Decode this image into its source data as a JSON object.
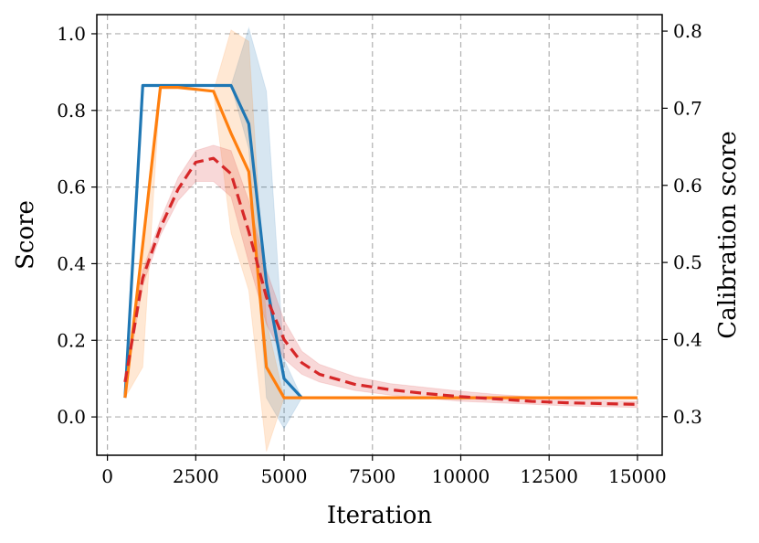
{
  "chart_data": {
    "type": "line",
    "xlabel": "Iteration",
    "ylabel": "Score",
    "y2label": "Calibration score",
    "xlim": [
      -300,
      15700
    ],
    "ylim": [
      -0.1,
      1.05
    ],
    "y2lim": [
      0.25,
      0.8214
    ],
    "grid": true,
    "x_ticks": [
      0,
      2500,
      5000,
      7500,
      10000,
      12500,
      15000
    ],
    "x_tick_labels": [
      "0",
      "2500",
      "5000",
      "7500",
      "10000",
      "12500",
      "15000"
    ],
    "y_ticks": [
      0.0,
      0.2,
      0.4,
      0.6,
      0.8,
      1.0
    ],
    "y_tick_labels": [
      "0.0",
      "0.2",
      "0.4",
      "0.6",
      "0.8",
      "1.0"
    ],
    "y2_ticks": [
      0.3,
      0.4,
      0.5,
      0.6,
      0.7,
      0.8
    ],
    "y2_tick_labels": [
      "0.3",
      "0.4",
      "0.5",
      "0.6",
      "0.7",
      "0.8"
    ],
    "series": [
      {
        "color": "#1f77b4",
        "axis": "left",
        "style": "solid",
        "x": [
          500,
          1000,
          1500,
          2000,
          2500,
          3000,
          3500,
          4000,
          4500,
          5000,
          5500
        ],
        "y": [
          0.05,
          0.865,
          0.865,
          0.865,
          0.865,
          0.865,
          0.865,
          0.765,
          0.35,
          0.1,
          0.05
        ],
        "lower": [
          0.05,
          0.865,
          0.865,
          0.865,
          0.865,
          0.865,
          0.865,
          0.7,
          0.05,
          -0.03,
          0.05
        ],
        "upper": [
          0.05,
          0.865,
          0.865,
          0.865,
          0.865,
          0.865,
          0.865,
          1.015,
          0.85,
          0.15,
          0.05
        ]
      },
      {
        "color": "#ff7f0e",
        "axis": "left",
        "style": "solid",
        "x": [
          500,
          1000,
          1500,
          2000,
          2500,
          3000,
          3500,
          4000,
          4500,
          5000,
          5500,
          6000,
          7000,
          8000,
          9000,
          10000,
          11000,
          12000,
          13000,
          14000,
          15000
        ],
        "y": [
          0.05,
          0.45,
          0.86,
          0.86,
          0.855,
          0.85,
          0.74,
          0.64,
          0.13,
          0.05,
          0.05,
          0.05,
          0.05,
          0.05,
          0.05,
          0.05,
          0.05,
          0.05,
          0.05,
          0.05,
          0.05
        ],
        "lower": [
          0.05,
          0.13,
          0.86,
          0.86,
          0.855,
          0.85,
          0.48,
          0.33,
          -0.09,
          0.05,
          0.05,
          0.05,
          0.05,
          0.05,
          0.05,
          0.05,
          0.05,
          0.05,
          0.05,
          0.05,
          0.05
        ],
        "upper": [
          0.05,
          0.45,
          0.86,
          0.86,
          0.855,
          0.85,
          1.01,
          0.98,
          0.25,
          0.05,
          0.05,
          0.05,
          0.05,
          0.05,
          0.05,
          0.05,
          0.05,
          0.05,
          0.05,
          0.05,
          0.05
        ]
      },
      {
        "color": "#d62728",
        "axis": "right",
        "style": "dashed",
        "x": [
          500,
          1000,
          1500,
          2000,
          2500,
          3000,
          3500,
          4000,
          4500,
          5000,
          5500,
          6000,
          7000,
          8000,
          9000,
          10000,
          11000,
          12000,
          13000,
          14000,
          15000
        ],
        "y": [
          0.345,
          0.48,
          0.545,
          0.595,
          0.63,
          0.635,
          0.615,
          0.54,
          0.455,
          0.4,
          0.37,
          0.355,
          0.342,
          0.335,
          0.33,
          0.326,
          0.323,
          0.32,
          0.318,
          0.317,
          0.316
        ],
        "lower": [
          0.335,
          0.47,
          0.535,
          0.58,
          0.605,
          0.605,
          0.585,
          0.5,
          0.42,
          0.375,
          0.355,
          0.345,
          0.334,
          0.328,
          0.324,
          0.32,
          0.318,
          0.316,
          0.314,
          0.313,
          0.312
        ],
        "upper": [
          0.355,
          0.49,
          0.555,
          0.61,
          0.645,
          0.652,
          0.645,
          0.58,
          0.49,
          0.425,
          0.385,
          0.368,
          0.352,
          0.343,
          0.338,
          0.333,
          0.329,
          0.326,
          0.323,
          0.321,
          0.32
        ]
      }
    ]
  }
}
